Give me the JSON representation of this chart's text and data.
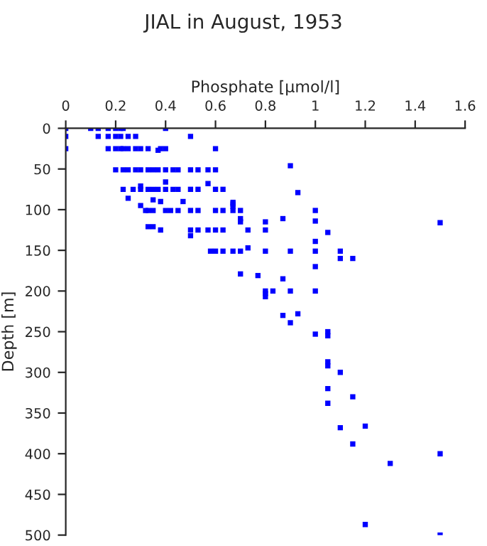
{
  "chart_data": {
    "type": "scatter",
    "title": "JIAL in August, 1953",
    "xlabel": "Phosphate [μmol/l]",
    "ylabel": "Depth [m]",
    "x": [
      0,
      0.1,
      0.13,
      0.17,
      0.2,
      0.22,
      0.23,
      0.4,
      0,
      0.13,
      0.17,
      0.2,
      0.22,
      0.25,
      0.28,
      0.5,
      0,
      0.17,
      0.2,
      0.22,
      0.23,
      0.25,
      0.28,
      0.3,
      0.33,
      0.38,
      0.4,
      0.6,
      0.37,
      0.2,
      0.23,
      0.25,
      0.28,
      0.3,
      0.33,
      0.35,
      0.37,
      0.4,
      0.43,
      0.45,
      0.5,
      0.53,
      0.57,
      0.6,
      0.4,
      0.57,
      0.3,
      0.23,
      0.27,
      0.3,
      0.33,
      0.35,
      0.37,
      0.4,
      0.43,
      0.45,
      0.5,
      0.53,
      0.6,
      0.63,
      0.25,
      0.35,
      0.38,
      0.47,
      0.67,
      0.67,
      0.3,
      0.9,
      0.93,
      0.32,
      0.33,
      0.35,
      0.4,
      0.42,
      0.45,
      0.5,
      0.53,
      0.6,
      0.63,
      0.67,
      0.7,
      1.0,
      0.67,
      0.7,
      0.87,
      0.8,
      1.0,
      1.5,
      0.7,
      0.33,
      0.35,
      0.38,
      0.5,
      0.53,
      0.57,
      0.6,
      0.63,
      0.73,
      0.8,
      1.05,
      0.5,
      1.0,
      0.58,
      0.6,
      0.63,
      0.67,
      0.7,
      0.73,
      0.8,
      0.9,
      1.0,
      1.1,
      1.1,
      1.15,
      1.0,
      0.7,
      0.77,
      0.87,
      0.8,
      0.8,
      0.8,
      0.83,
      0.9,
      1.0,
      0.87,
      0.93,
      0.9,
      1.0,
      1.05,
      1.05,
      1.05,
      1.05,
      1.1,
      1.05,
      1.15,
      1.05,
      1.1,
      1.2,
      1.15,
      1.5,
      1.3,
      1.2,
      1.5
    ],
    "values": [
      0,
      0,
      0,
      0,
      0,
      0,
      0,
      0,
      10,
      10,
      10,
      10,
      10,
      10,
      10,
      10,
      25,
      25,
      25,
      25,
      25,
      25,
      25,
      25,
      25,
      25,
      25,
      25,
      27,
      51,
      51,
      51,
      51,
      51,
      51,
      51,
      51,
      51,
      51,
      51,
      51,
      51,
      51,
      51,
      66,
      68,
      71,
      75,
      75,
      75,
      75,
      75,
      75,
      75,
      75,
      75,
      75,
      75,
      75,
      75,
      86,
      88,
      90,
      90,
      91,
      96,
      95,
      46,
      79,
      101,
      101,
      101,
      101,
      101,
      101,
      101,
      101,
      101,
      101,
      101,
      101,
      101,
      93,
      111,
      111,
      115,
      114,
      116,
      115,
      121,
      121,
      125,
      125,
      125,
      125,
      125,
      125,
      125,
      125,
      128,
      132,
      139,
      151,
      151,
      151,
      151,
      151,
      147,
      151,
      151,
      151,
      151,
      160,
      160,
      170,
      179,
      181,
      185,
      200,
      203,
      207,
      200,
      200,
      200,
      230,
      228,
      239,
      253,
      250,
      255,
      287,
      292,
      300,
      320,
      330,
      338,
      368,
      366,
      388,
      400,
      412,
      487,
      500
    ],
    "color": "#0000ff",
    "marker": "square",
    "xlim": [
      0,
      1.6
    ],
    "xticks": [
      0,
      0.2,
      0.4,
      0.6,
      0.8,
      1,
      1.2,
      1.4,
      1.6
    ],
    "ylim": [
      500,
      0
    ],
    "yticks": [
      0,
      50,
      100,
      150,
      200,
      250,
      300,
      350,
      400,
      450,
      500
    ],
    "grid": false,
    "legend": false
  }
}
